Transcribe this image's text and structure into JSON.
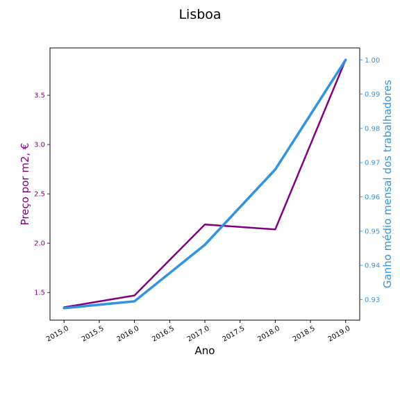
{
  "chart_data": {
    "type": "line",
    "title": "Lisboa",
    "xlabel": "Ano",
    "ylabel_left": "Preço por m2, €",
    "ylabel_right": "Ganho médio mensal dos trabalhadores",
    "x": [
      2015.0,
      2016.0,
      2017.0,
      2018.0,
      2019.0
    ],
    "xlim": [
      2014.8,
      2019.2
    ],
    "xticks": [
      "2015.0",
      "2016.0",
      "2016.5",
      "2017.0",
      "2017.5",
      "2018.0",
      "2018.5",
      "2019.0"
    ],
    "xticks_all": [
      "2015.0",
      "2015.5",
      "2016.0",
      "2016.5",
      "2017.0",
      "2017.5",
      "2018.0",
      "2018.5",
      "2019.0"
    ],
    "ylim_left": [
      1.22,
      3.98
    ],
    "yticks_left": [
      "1.5",
      "2.0",
      "2.5",
      "3.0",
      "3.5"
    ],
    "ylim_right": [
      0.924,
      1.0035
    ],
    "yticks_right": [
      "0.93",
      "0.94",
      "0.95",
      "0.96",
      "0.97",
      "0.98",
      "0.99",
      "1.00"
    ],
    "series": [
      {
        "axis": "left",
        "color": "#800080",
        "values": [
          1.35,
          1.47,
          2.19,
          2.14,
          3.86
        ]
      },
      {
        "axis": "right",
        "color": "#3493de",
        "values": [
          0.9275,
          0.9295,
          0.946,
          0.968,
          1.0
        ]
      }
    ],
    "colors": {
      "left_axis": "#800080",
      "right_axis": "#3493de"
    },
    "grid": false,
    "legend": "none"
  }
}
